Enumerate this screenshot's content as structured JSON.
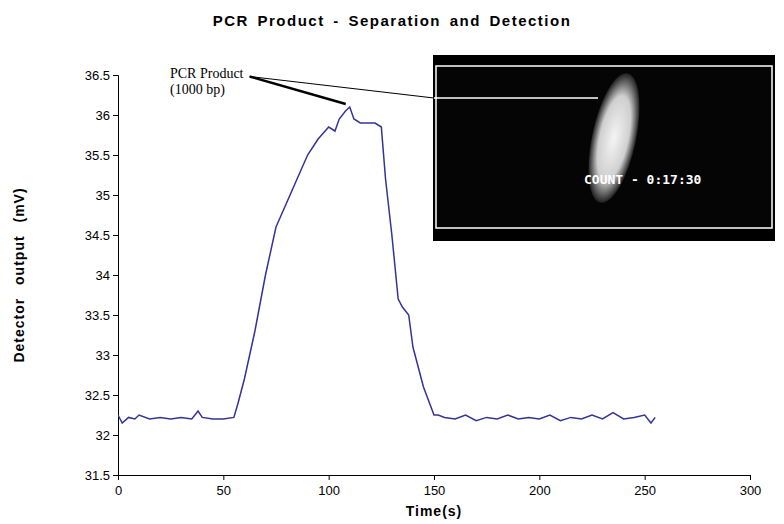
{
  "chart_data": {
    "type": "line",
    "title": "PCR Product - Separation and Detection",
    "x_label": "Time(s)",
    "y_label": "Detector output (mV)",
    "x": [
      0,
      2,
      5,
      8,
      10,
      15,
      20,
      25,
      30,
      35,
      38,
      40,
      45,
      50,
      55,
      57,
      60,
      65,
      70,
      75,
      80,
      85,
      90,
      95,
      100,
      103,
      105,
      108,
      110,
      112,
      115,
      118,
      120,
      122,
      125,
      127,
      130,
      133,
      135,
      138,
      140,
      145,
      150,
      152,
      155,
      160,
      165,
      170,
      175,
      180,
      185,
      190,
      195,
      200,
      205,
      210,
      215,
      220,
      225,
      230,
      235,
      240,
      245,
      250,
      253,
      255
    ],
    "values": [
      32.25,
      32.15,
      32.22,
      32.2,
      32.25,
      32.2,
      32.22,
      32.2,
      32.22,
      32.2,
      32.3,
      32.22,
      32.2,
      32.2,
      32.22,
      32.4,
      32.7,
      33.3,
      34.0,
      34.6,
      34.9,
      35.2,
      35.5,
      35.7,
      35.85,
      35.8,
      35.95,
      36.05,
      36.1,
      35.95,
      35.9,
      35.9,
      35.9,
      35.9,
      35.85,
      35.2,
      34.5,
      33.7,
      33.6,
      33.5,
      33.1,
      32.6,
      32.25,
      32.25,
      32.22,
      32.2,
      32.25,
      32.18,
      32.22,
      32.2,
      32.25,
      32.2,
      32.22,
      32.2,
      32.25,
      32.18,
      32.22,
      32.2,
      32.25,
      32.2,
      32.28,
      32.2,
      32.22,
      32.25,
      32.15,
      32.22
    ],
    "color": "#333399",
    "xlim": [
      0,
      300
    ],
    "xticks": [
      0,
      50,
      100,
      150,
      200,
      250,
      300
    ],
    "ylim": [
      31.5,
      36.5
    ],
    "yticks": [
      31.5,
      32,
      32.5,
      33,
      33.5,
      34,
      34.5,
      35,
      35.5,
      36,
      36.5
    ],
    "grid": false,
    "annotations": [
      {
        "lines": [
          "PCR Product",
          "(1000 bp)"
        ]
      }
    ],
    "inset": {
      "text": "COUNT - 0:17:30"
    }
  }
}
